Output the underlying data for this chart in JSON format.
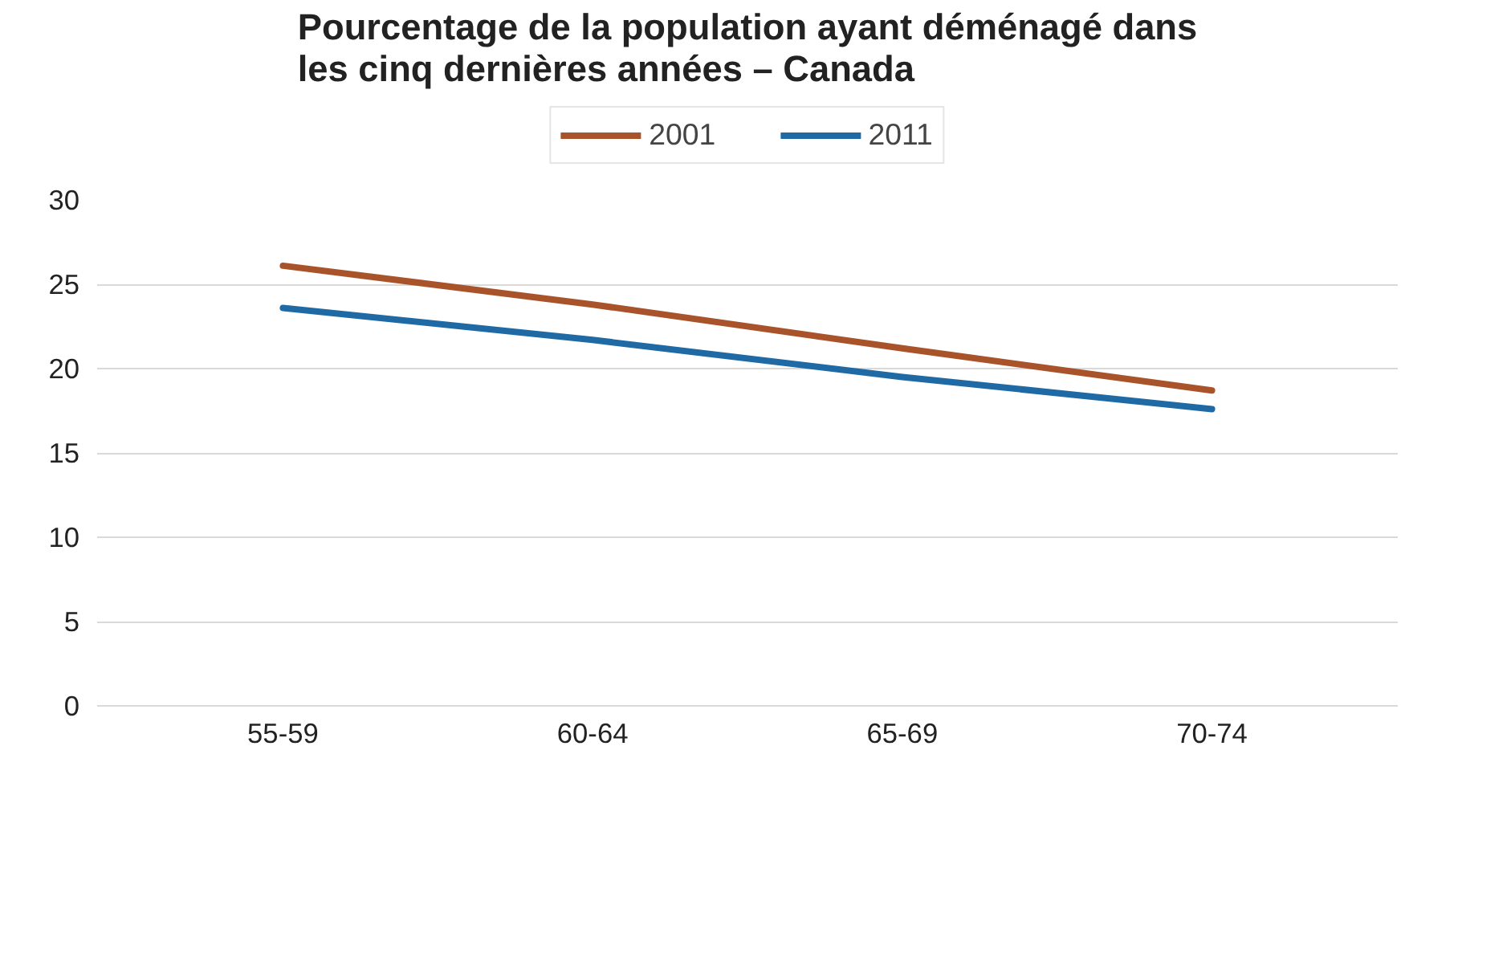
{
  "chart_data": {
    "type": "line",
    "title": "Pourcentage de la population ayant déménagé dans\nles cinq dernières années – Canada",
    "categories": [
      "55-59",
      "60-64",
      "65-69",
      "70-74"
    ],
    "series": [
      {
        "name": "2001",
        "color": "#a9532b",
        "values": [
          26.1,
          23.8,
          21.2,
          18.7
        ]
      },
      {
        "name": "2011",
        "color": "#1f6aa5",
        "values": [
          23.6,
          21.7,
          19.5,
          17.6
        ]
      }
    ],
    "ylim": [
      0,
      30
    ],
    "yticks": [
      0,
      5,
      10,
      15,
      20,
      25,
      30
    ],
    "grid": "y",
    "legend": "top",
    "marker": "none",
    "line_style": "solid"
  }
}
